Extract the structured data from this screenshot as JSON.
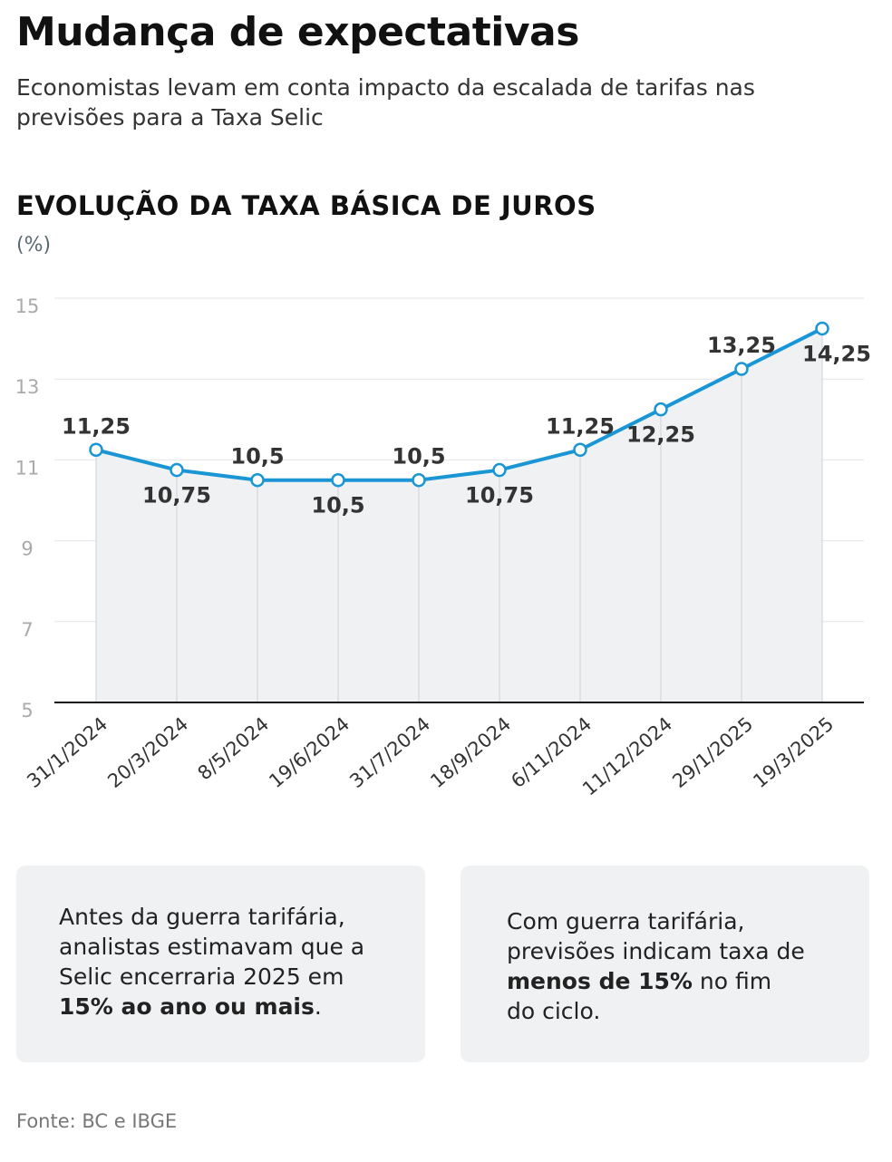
{
  "header": {
    "title": "Mudança de expectativas",
    "subtitle": "Economistas levam em conta impacto da escalada de tarifas nas previsões para a Taxa Selic"
  },
  "chart_data": {
    "type": "line",
    "title": "EVOLUÇÃO DA TAXA BÁSICA DE JUROS",
    "ylabel": "(%)",
    "categories": [
      "31/1/2024",
      "20/3/2024",
      "8/5/2024",
      "19/6/2024",
      "31/7/2024",
      "18/9/2024",
      "6/11/2024",
      "11/12/2024",
      "29/1/2025",
      "19/3/2025"
    ],
    "values": [
      11.25,
      10.75,
      10.5,
      10.5,
      10.5,
      10.75,
      11.25,
      12.25,
      13.25,
      14.25
    ],
    "data_labels": [
      "11,25",
      "10,75",
      "10,5",
      "10,5",
      "10,5",
      "10,75",
      "11,25",
      "12,25",
      "13,25",
      "14,25"
    ],
    "ylim": [
      5,
      15
    ],
    "yticks": [
      "5",
      "7",
      "9",
      "11",
      "13",
      "15"
    ],
    "grid": true,
    "line_color": "#1a96d4",
    "area_color": "#f0f1f3"
  },
  "boxes": [
    {
      "text_before": "Antes da guerra tarifária, analistas estimavam que a Selic encerraria 2025 em ",
      "bold": "15% ao ano ou mais",
      "text_after": "."
    },
    {
      "text_before": "Com guerra tarifária, previsões indicam taxa de ",
      "bold": "menos de 15%",
      "text_after": " no fim do ciclo."
    }
  ],
  "source": "Fonte: BC e IBGE"
}
